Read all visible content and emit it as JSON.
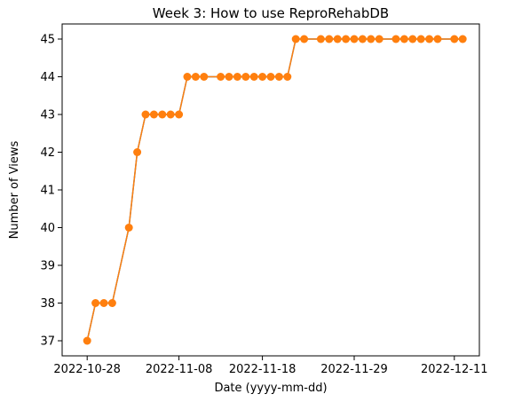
{
  "chart_data": {
    "type": "line",
    "title": "Week 3: How to use ReproRehabDB",
    "xlabel": "Date (yyyy-mm-dd)",
    "ylabel": "Number of Views",
    "x_ticks": [
      "2022-10-28",
      "2022-11-08",
      "2022-11-18",
      "2022-11-29",
      "2022-12-11"
    ],
    "y_ticks": [
      37,
      38,
      39,
      40,
      41,
      42,
      43,
      44,
      45
    ],
    "xlim": [
      "2022-10-25",
      "2022-12-14"
    ],
    "ylim": [
      36.6,
      45.4
    ],
    "grid": false,
    "series": [
      {
        "color": "#ff7f0e",
        "line_color": "#1f77b4",
        "marker": "circle",
        "x": [
          "2022-10-28",
          "2022-10-29",
          "2022-10-30",
          "2022-10-31",
          "2022-11-02",
          "2022-11-03",
          "2022-11-04",
          "2022-11-05",
          "2022-11-06",
          "2022-11-07",
          "2022-11-08",
          "2022-11-09",
          "2022-11-10",
          "2022-11-11",
          "2022-11-13",
          "2022-11-14",
          "2022-11-15",
          "2022-11-16",
          "2022-11-17",
          "2022-11-18",
          "2022-11-19",
          "2022-11-20",
          "2022-11-21",
          "2022-11-22",
          "2022-11-23",
          "2022-11-25",
          "2022-11-26",
          "2022-11-27",
          "2022-11-28",
          "2022-11-29",
          "2022-11-30",
          "2022-12-01",
          "2022-12-02",
          "2022-12-04",
          "2022-12-05",
          "2022-12-06",
          "2022-12-07",
          "2022-12-08",
          "2022-12-09",
          "2022-12-11",
          "2022-12-12"
        ],
        "values": [
          37,
          38,
          38,
          38,
          40,
          42,
          43,
          43,
          43,
          43,
          43,
          44,
          44,
          44,
          44,
          44,
          44,
          44,
          44,
          44,
          44,
          44,
          44,
          45,
          45,
          45,
          45,
          45,
          45,
          45,
          45,
          45,
          45,
          45,
          45,
          45,
          45,
          45,
          45,
          45,
          45
        ]
      }
    ]
  }
}
